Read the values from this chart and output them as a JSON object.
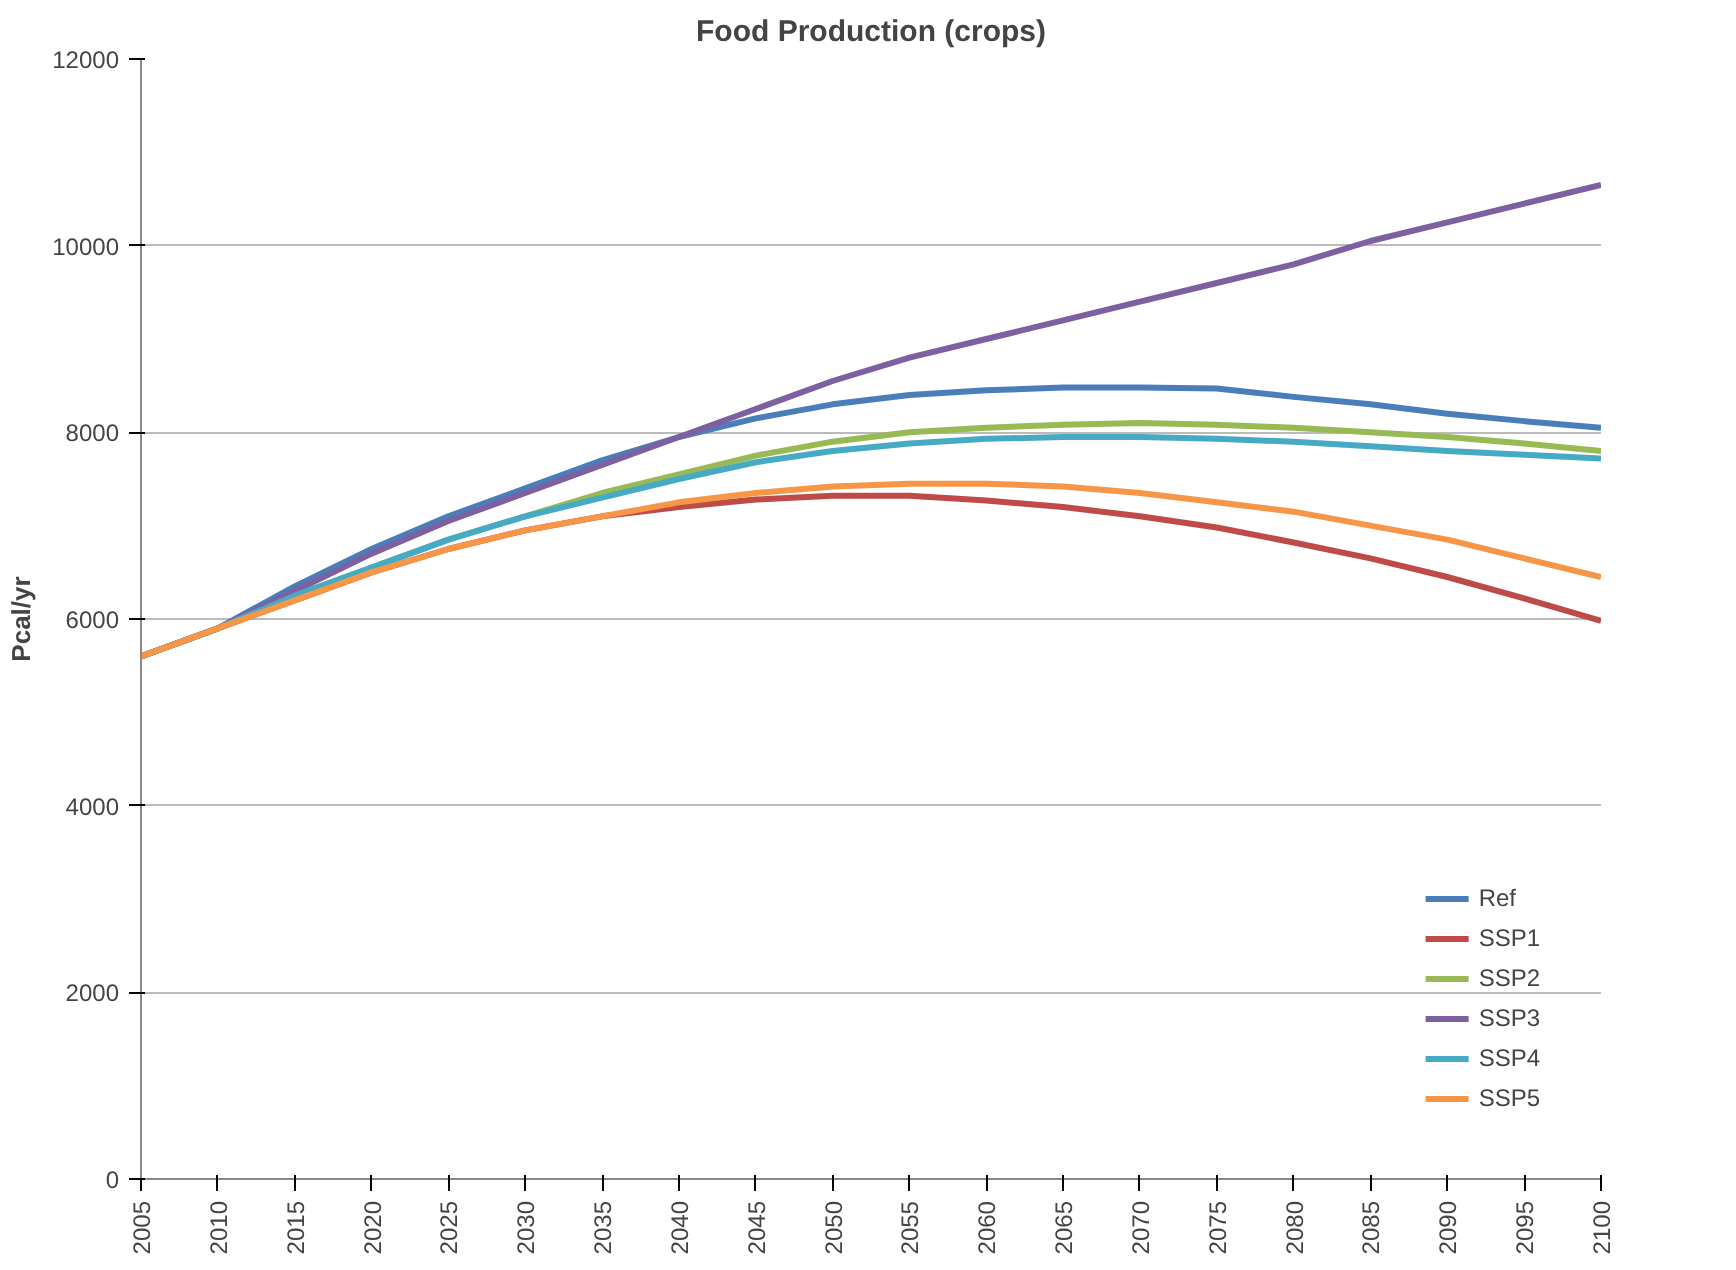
{
  "chart_data": {
    "type": "line",
    "title": "Food Production (crops)",
    "ylabel": "Pcal/yr",
    "x": [
      2005,
      2010,
      2015,
      2020,
      2025,
      2030,
      2035,
      2040,
      2045,
      2050,
      2055,
      2060,
      2065,
      2070,
      2075,
      2080,
      2085,
      2090,
      2095,
      2100
    ],
    "xlim": [
      2005,
      2100
    ],
    "xticks": [
      2005,
      2010,
      2015,
      2020,
      2025,
      2030,
      2035,
      2040,
      2045,
      2050,
      2055,
      2060,
      2065,
      2070,
      2075,
      2080,
      2085,
      2090,
      2095,
      2100
    ],
    "ylim": [
      0,
      12000
    ],
    "yticks": [
      0,
      2000,
      4000,
      6000,
      8000,
      10000,
      12000
    ],
    "grid": "y",
    "legend": "bottom right",
    "marker": "none",
    "line_style": "solid",
    "series": [
      {
        "name": "Ref",
        "color": "#4a7ebb",
        "values": [
          5600,
          5900,
          6350,
          6750,
          7100,
          7400,
          7700,
          7950,
          8150,
          8300,
          8400,
          8450,
          8480,
          8480,
          8470,
          8380,
          8300,
          8200,
          8120,
          8050
        ]
      },
      {
        "name": "SSP1",
        "color": "#be4b48",
        "values": [
          5600,
          5900,
          6200,
          6500,
          6750,
          6950,
          7100,
          7200,
          7280,
          7320,
          7320,
          7270,
          7200,
          7100,
          6980,
          6820,
          6650,
          6450,
          6220,
          5980
        ]
      },
      {
        "name": "SSP2",
        "color": "#98b954",
        "values": [
          5600,
          5900,
          6250,
          6550,
          6850,
          7100,
          7350,
          7550,
          7750,
          7900,
          8000,
          8050,
          8080,
          8100,
          8080,
          8050,
          8000,
          7950,
          7880,
          7800
        ]
      },
      {
        "name": "SSP3",
        "color": "#7d60a0",
        "values": [
          5600,
          5900,
          6300,
          6700,
          7050,
          7350,
          7650,
          7950,
          8250,
          8550,
          8800,
          9000,
          9200,
          9400,
          9600,
          9800,
          10050,
          10250,
          10450,
          10650
        ]
      },
      {
        "name": "SSP4",
        "color": "#46aac5",
        "values": [
          5600,
          5900,
          6250,
          6550,
          6850,
          7100,
          7300,
          7500,
          7680,
          7800,
          7880,
          7930,
          7950,
          7950,
          7930,
          7900,
          7850,
          7800,
          7760,
          7720
        ]
      },
      {
        "name": "SSP5",
        "color": "#f79646",
        "values": [
          5600,
          5900,
          6200,
          6500,
          6750,
          6950,
          7100,
          7250,
          7350,
          7420,
          7450,
          7450,
          7420,
          7350,
          7250,
          7150,
          7000,
          6850,
          6650,
          6450
        ]
      }
    ]
  }
}
